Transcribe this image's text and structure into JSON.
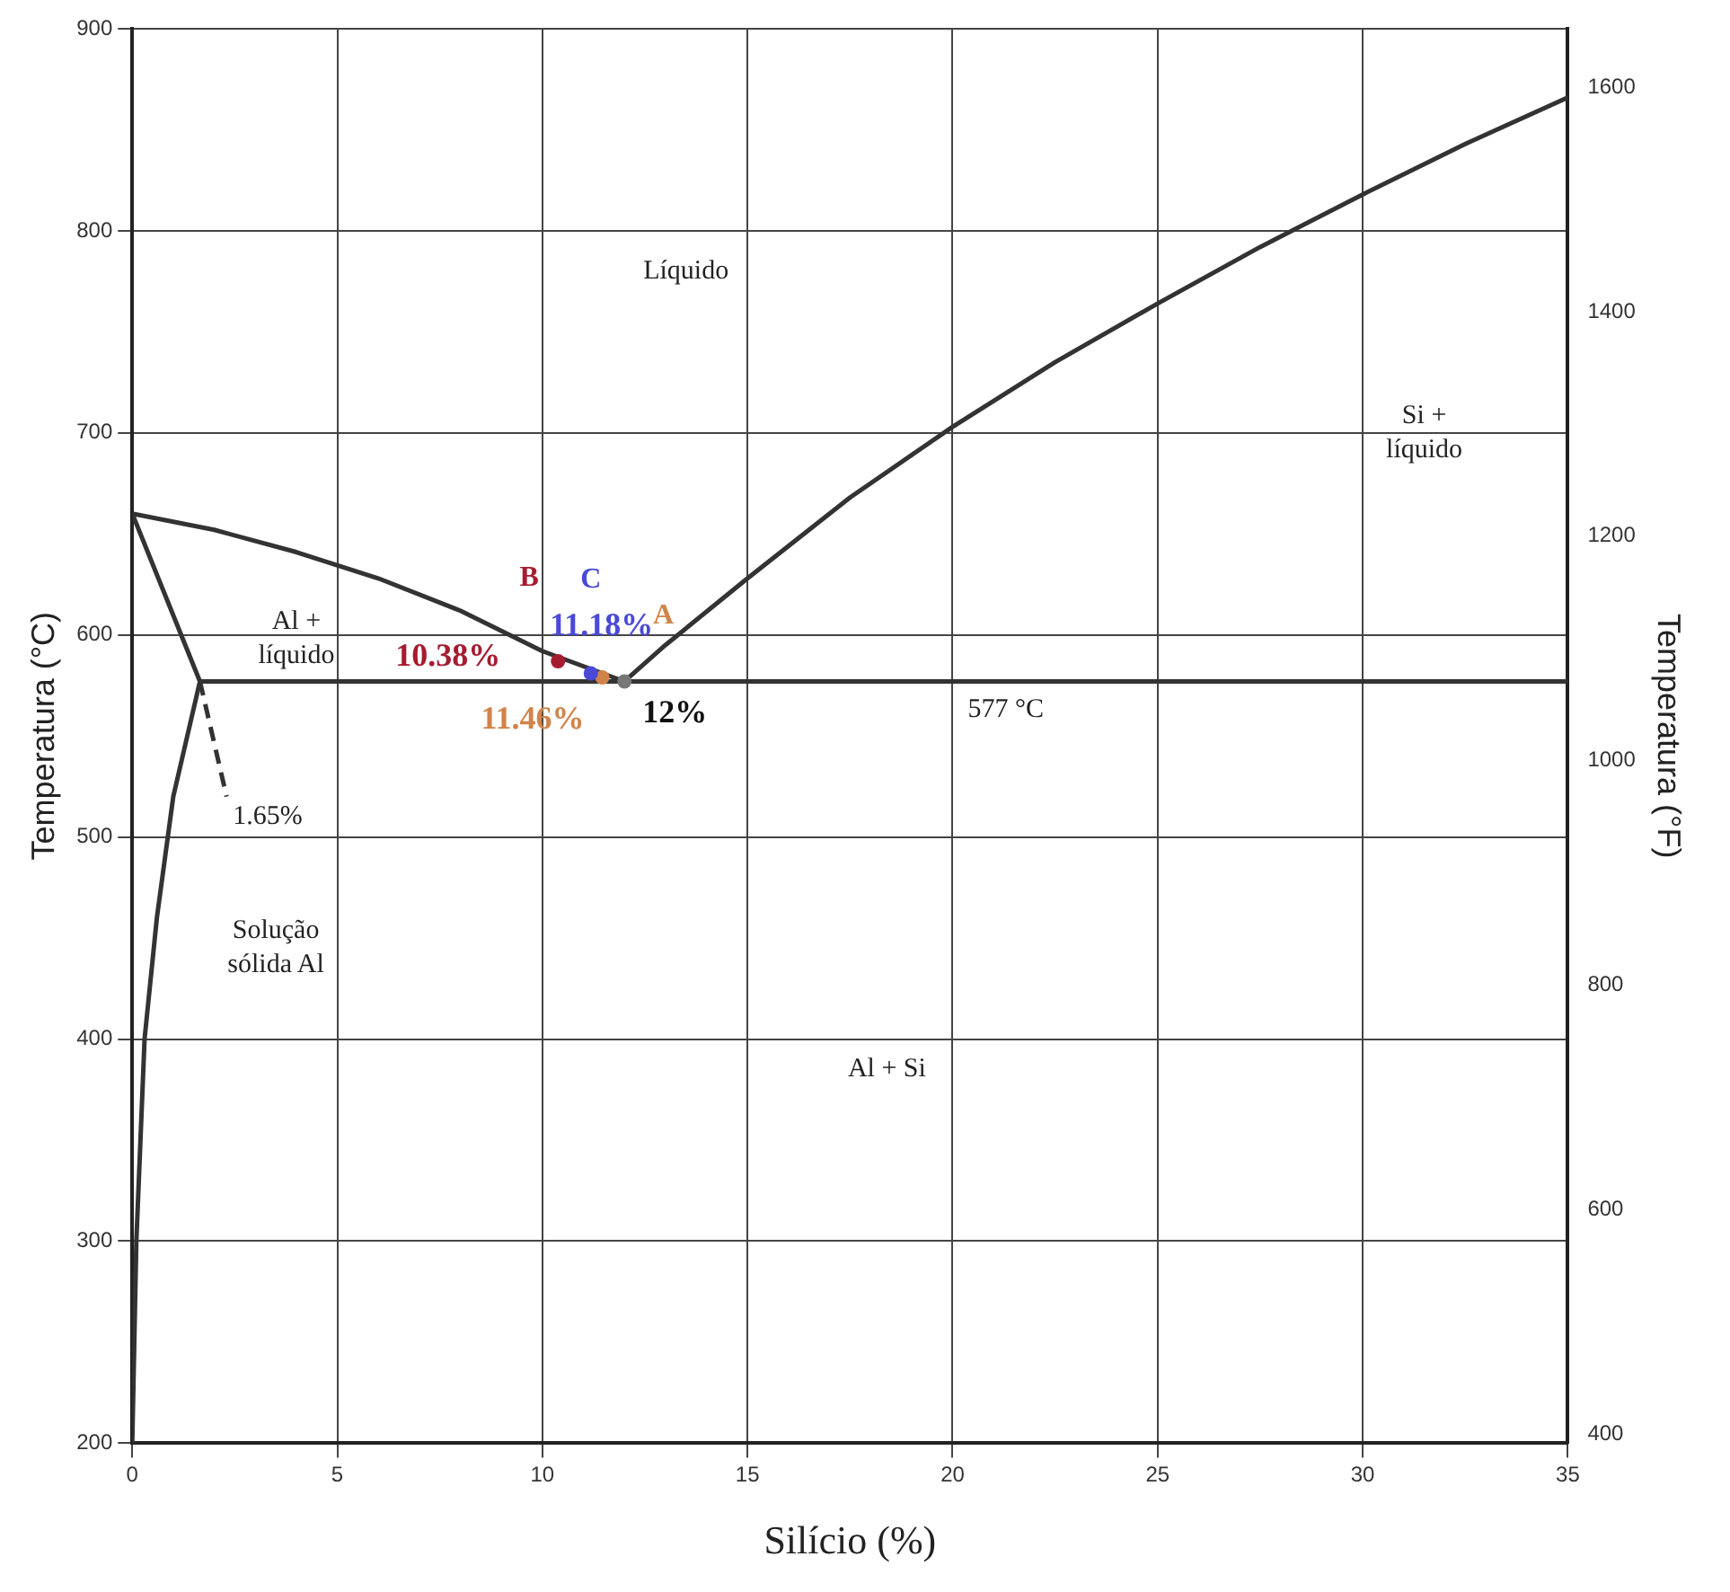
{
  "chart_data": {
    "type": "line",
    "xlabel": "Silício (%)",
    "ylabel": "Temperatura (°C)",
    "y2label": "Temperatura (°F)",
    "xlim": [
      0,
      35
    ],
    "xticks": [
      0,
      5,
      10,
      15,
      20,
      25,
      30,
      35
    ],
    "ylim": [
      200,
      900
    ],
    "yticks": [
      200,
      300,
      400,
      500,
      600,
      700,
      800,
      900
    ],
    "y2lim": [
      392,
      1652
    ],
    "y2ticks": [
      400,
      600,
      800,
      1000,
      1200,
      1400,
      1600
    ],
    "grid": true,
    "legend": false,
    "series": [
      {
        "color": "#333333",
        "x": [
          0,
          2,
          4,
          6,
          8,
          10,
          12
        ],
        "values": [
          660,
          652,
          641,
          628,
          612,
          592,
          577
        ]
      },
      {
        "color": "#333333",
        "x": [
          12,
          13,
          15,
          17.5,
          20,
          22.5,
          25,
          27.5,
          30,
          32.5,
          35
        ],
        "values": [
          577,
          595,
          628,
          668,
          703,
          735,
          764,
          792,
          818,
          843,
          866
        ]
      },
      {
        "color": "#333333",
        "x": [
          1.65,
          35
        ],
        "values": [
          577,
          577
        ]
      },
      {
        "color": "#333333",
        "x": [
          0,
          1.65
        ],
        "values": [
          660,
          577
        ]
      },
      {
        "color": "#333333",
        "x": [
          0,
          0.1,
          0.3,
          0.6,
          1.0,
          1.65
        ],
        "values": [
          200,
          300,
          400,
          460,
          520,
          577
        ]
      },
      {
        "color": "#333333",
        "line_style": "dashed",
        "x": [
          1.65,
          2.3
        ],
        "values": [
          577,
          520
        ]
      },
      {
        "type": "scatter",
        "name": "B",
        "color": "#a51c30",
        "x": [
          10.38
        ],
        "values": [
          587
        ]
      },
      {
        "type": "scatter",
        "name": "C",
        "color": "#4a4ad6",
        "x": [
          11.18
        ],
        "values": [
          581
        ]
      },
      {
        "type": "scatter",
        "name": "A",
        "color": "#d0844a",
        "x": [
          11.46
        ],
        "values": [
          579
        ]
      },
      {
        "type": "scatter",
        "color": "#777777",
        "x": [
          12
        ],
        "values": [
          577
        ]
      }
    ],
    "annotations": [
      "Líquido",
      "Si +\nlíquido",
      "Al +\nlíquido",
      "577 °C",
      "1.65%",
      "Solução\nsólida Al",
      "Al + Si",
      {
        "text": "10.38%",
        "x": 10.38,
        "y": 587
      },
      {
        "text": "11.18%",
        "x": 11.18,
        "y": 581
      },
      {
        "text": "11.46%",
        "x": 11.46,
        "y": 579
      },
      {
        "text": "12%",
        "x": 12,
        "y": 577
      }
    ]
  }
}
